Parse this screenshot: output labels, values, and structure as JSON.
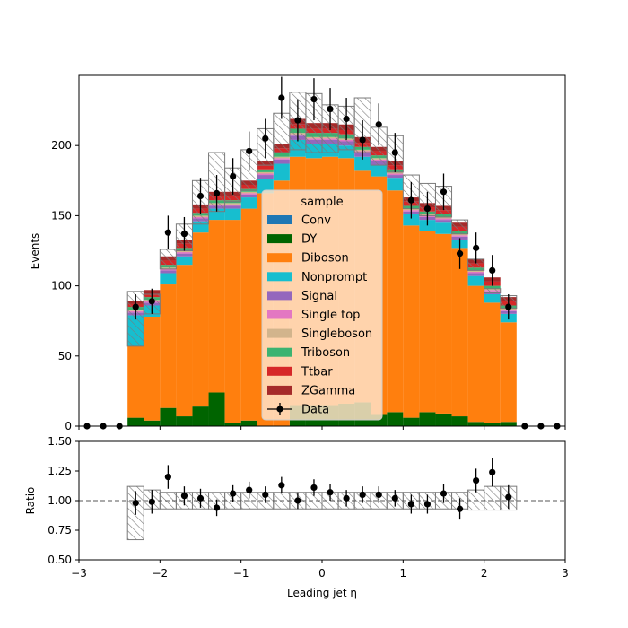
{
  "chart_data": [
    {
      "type": "bar",
      "subtype": "stacked-histogram",
      "xlabel": "Leading jet  η",
      "ylabel": "Events",
      "xlim": [
        -3,
        3
      ],
      "ylim": [
        0,
        250
      ],
      "yticks": [
        0,
        50,
        100,
        150,
        200
      ],
      "xticks": [
        -3,
        -2,
        -1,
        0,
        1,
        2,
        3
      ],
      "bin_edges": [
        -3.0,
        -2.8,
        -2.6,
        -2.4,
        -2.2,
        -2.0,
        -1.8,
        -1.6,
        -1.4,
        -1.2,
        -1.0,
        -0.8,
        -0.6,
        -0.4,
        -0.2,
        0.0,
        0.2,
        0.4,
        0.6,
        0.8,
        1.0,
        1.2,
        1.4,
        1.6,
        1.8,
        2.0,
        2.2,
        2.4,
        2.6,
        2.8,
        3.0
      ],
      "legend_title": "sample",
      "legend_position": "center",
      "series": [
        {
          "name": "Conv",
          "color": "#1f77b4",
          "values": [
            0,
            0,
            0,
            0,
            0,
            0,
            0,
            0,
            0,
            0,
            0,
            0,
            0,
            0,
            0,
            0,
            0,
            0,
            0,
            0,
            0,
            0,
            0,
            0,
            0,
            0,
            0,
            0,
            0,
            0
          ]
        },
        {
          "name": "DY",
          "color": "#006400",
          "values": [
            0,
            0,
            0,
            6,
            4,
            13,
            7,
            14,
            24,
            2,
            4,
            0,
            0,
            15,
            15,
            15,
            16,
            17,
            8,
            10,
            6,
            10,
            9,
            7,
            3,
            2,
            3,
            0,
            0,
            0
          ]
        },
        {
          "name": "Diboson",
          "color": "#ff7f0e",
          "values": [
            0,
            0,
            0,
            51,
            74,
            88,
            108,
            124,
            123,
            145,
            151,
            166,
            175,
            177,
            176,
            177,
            175,
            165,
            170,
            158,
            137,
            129,
            128,
            120,
            97,
            86,
            71,
            0,
            0,
            0
          ]
        },
        {
          "name": "Nonprompt",
          "color": "#17becf",
          "values": [
            0,
            0,
            0,
            22,
            8,
            8,
            6,
            8,
            8,
            8,
            8,
            10,
            12,
            12,
            10,
            9,
            9,
            10,
            8,
            9,
            8,
            8,
            8,
            6,
            7,
            6,
            6,
            0,
            0,
            0
          ]
        },
        {
          "name": "Signal",
          "color": "#9467bd",
          "values": [
            0,
            0,
            0,
            2,
            2,
            2,
            2,
            2,
            2,
            2,
            2,
            3,
            3,
            3,
            3,
            3,
            3,
            3,
            3,
            2,
            2,
            2,
            2,
            2,
            2,
            2,
            2,
            0,
            0,
            0
          ]
        },
        {
          "name": "Single top",
          "color": "#e377c2",
          "values": [
            0,
            0,
            0,
            1,
            1,
            1,
            1,
            1,
            1,
            1,
            1,
            1,
            1,
            1,
            1,
            1,
            1,
            1,
            1,
            1,
            1,
            1,
            1,
            1,
            1,
            1,
            1,
            0,
            0,
            0
          ]
        },
        {
          "name": "Singleboson",
          "color": "#d2b48c",
          "values": [
            0,
            0,
            0,
            1,
            1,
            1,
            1,
            1,
            1,
            1,
            1,
            1,
            1,
            1,
            1,
            1,
            1,
            1,
            1,
            1,
            1,
            1,
            1,
            1,
            1,
            1,
            1,
            0,
            0,
            0
          ]
        },
        {
          "name": "Triboson",
          "color": "#3cb371",
          "values": [
            0,
            0,
            0,
            2,
            2,
            2,
            2,
            2,
            2,
            2,
            2,
            2,
            3,
            3,
            3,
            3,
            3,
            2,
            2,
            2,
            2,
            2,
            2,
            2,
            2,
            2,
            2,
            0,
            0,
            0
          ]
        },
        {
          "name": "Ttbar",
          "color": "#d62728",
          "values": [
            0,
            0,
            0,
            2,
            2,
            3,
            3,
            3,
            3,
            3,
            3,
            3,
            3,
            3,
            3,
            3,
            3,
            3,
            3,
            3,
            3,
            3,
            3,
            3,
            3,
            3,
            3,
            0,
            0,
            0
          ]
        },
        {
          "name": "ZGamma",
          "color": "#a52a2a",
          "values": [
            0,
            0,
            0,
            2,
            3,
            3,
            3,
            3,
            3,
            3,
            3,
            3,
            3,
            4,
            4,
            4,
            4,
            4,
            3,
            3,
            3,
            3,
            3,
            3,
            3,
            3,
            3,
            0,
            0,
            0
          ]
        }
      ],
      "uncertainty_band": {
        "label": "",
        "up": [
          0,
          0,
          0,
          96,
          94,
          126,
          144,
          175,
          195,
          184,
          197,
          212,
          223,
          238,
          237,
          229,
          228,
          234,
          213,
          207,
          179,
          173,
          171,
          147,
          119,
          98,
          93,
          0,
          0,
          0
        ],
        "down": [
          0,
          0,
          0,
          57,
          80,
          112,
          125,
          144,
          153,
          160,
          168,
          186,
          195,
          197,
          195,
          195,
          197,
          195,
          186,
          181,
          155,
          150,
          149,
          137,
          111,
          95,
          84,
          0,
          0,
          0
        ]
      },
      "data": {
        "name": "Data",
        "x": [
          -2.9,
          -2.7,
          -2.5,
          -2.3,
          -2.1,
          -1.9,
          -1.7,
          -1.5,
          -1.3,
          -1.1,
          -0.9,
          -0.7,
          -0.5,
          -0.3,
          -0.1,
          0.1,
          0.3,
          0.5,
          0.7,
          0.9,
          1.1,
          1.3,
          1.5,
          1.7,
          1.9,
          2.1,
          2.3,
          2.5,
          2.7,
          2.9
        ],
        "y": [
          0,
          0,
          0,
          85,
          89,
          138,
          137,
          164,
          166,
          178,
          196,
          205,
          234,
          218,
          233,
          226,
          219,
          204,
          215,
          195,
          161,
          155,
          167,
          123,
          127,
          111,
          85,
          0,
          0,
          0
        ],
        "err": [
          0,
          0,
          0,
          9,
          9,
          12,
          12,
          13,
          13,
          13,
          14,
          14,
          15,
          15,
          15,
          15,
          15,
          14,
          15,
          14,
          13,
          12,
          13,
          11,
          11,
          11,
          9,
          0,
          0,
          0
        ]
      }
    },
    {
      "type": "scatter",
      "subtype": "ratio",
      "xlabel": "Leading jet  η",
      "ylabel": "Ratio",
      "xlim": [
        -3,
        3
      ],
      "ylim": [
        0.5,
        1.5
      ],
      "yticks": [
        0.5,
        0.75,
        1.0,
        1.25,
        1.5
      ],
      "ytick_labels": [
        "0.50",
        "0.75",
        "1.00",
        "1.25",
        "1.50"
      ],
      "xticks": [
        -3,
        -2,
        -1,
        0,
        1,
        2,
        3
      ],
      "reference_line": 1.0,
      "x": [
        -2.3,
        -2.1,
        -1.9,
        -1.7,
        -1.5,
        -1.3,
        -1.1,
        -0.9,
        -0.7,
        -0.5,
        -0.3,
        -0.1,
        0.1,
        0.3,
        0.5,
        0.7,
        0.9,
        1.1,
        1.3,
        1.5,
        1.7,
        1.9,
        2.1,
        2.3
      ],
      "y": [
        0.98,
        0.99,
        1.2,
        1.04,
        1.02,
        0.94,
        1.06,
        1.09,
        1.05,
        1.13,
        1.0,
        1.11,
        1.07,
        1.02,
        1.05,
        1.05,
        1.02,
        0.97,
        0.97,
        1.06,
        0.93,
        1.17,
        1.24,
        1.03
      ],
      "err": [
        0.1,
        0.1,
        0.1,
        0.08,
        0.08,
        0.07,
        0.07,
        0.07,
        0.07,
        0.07,
        0.07,
        0.07,
        0.07,
        0.07,
        0.07,
        0.07,
        0.07,
        0.08,
        0.08,
        0.08,
        0.09,
        0.1,
        0.12,
        0.1
      ],
      "band_up": [
        1.12,
        1.09,
        1.07,
        1.07,
        1.07,
        1.07,
        1.07,
        1.07,
        1.07,
        1.07,
        1.07,
        1.07,
        1.07,
        1.07,
        1.07,
        1.07,
        1.07,
        1.07,
        1.07,
        1.07,
        1.07,
        1.09,
        1.12,
        1.12
      ],
      "band_down": [
        0.67,
        0.93,
        0.93,
        0.93,
        0.93,
        0.93,
        0.93,
        0.93,
        0.93,
        0.93,
        0.93,
        0.93,
        0.93,
        0.93,
        0.93,
        0.93,
        0.93,
        0.93,
        0.93,
        0.93,
        0.93,
        0.92,
        0.92,
        0.92
      ]
    }
  ]
}
